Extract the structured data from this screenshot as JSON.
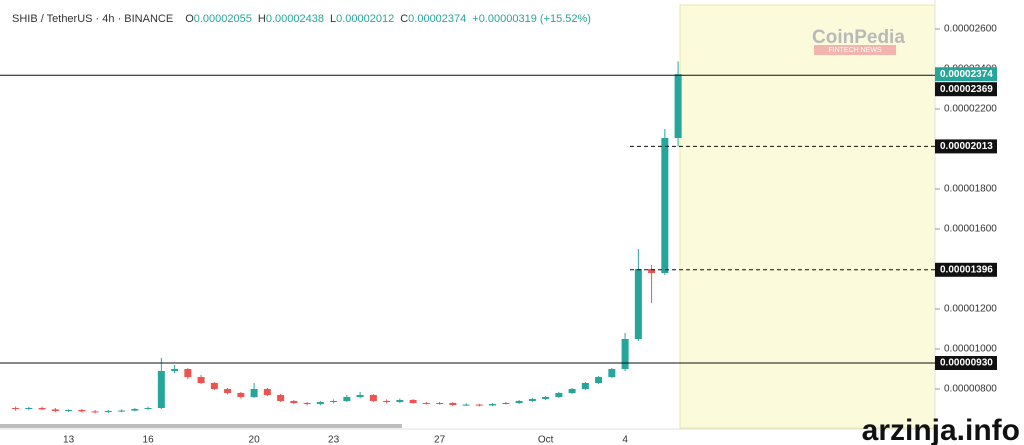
{
  "chart_data": {
    "type": "candlestick",
    "title": "SHIB / TetherUS · 4h · BINANCE",
    "ohlc_labels": [
      "O",
      "H",
      "L",
      "C"
    ],
    "change": "+0.00000319 (+15.52%)",
    "up_color": "#26a69a",
    "down_color": "#ef5350",
    "categories": [
      null,
      null,
      null,
      null,
      "13",
      null,
      null,
      null,
      null,
      null,
      "16",
      null,
      null,
      null,
      null,
      null,
      null,
      null,
      "20",
      null,
      null,
      null,
      null,
      null,
      "23",
      null,
      null,
      null,
      null,
      null,
      null,
      null,
      "27",
      null,
      null,
      null,
      null,
      null,
      null,
      null,
      "Oct",
      null,
      null,
      null,
      null,
      null,
      "4",
      null,
      null,
      null,
      null
    ],
    "open": [
      7.05e-06,
      7e-06,
      7.05e-06,
      6.98e-06,
      6.9e-06,
      6.95e-06,
      6.88e-06,
      6.85e-06,
      6.9e-06,
      6.92e-06,
      7e-06,
      7.05e-06,
      8.9e-06,
      9e-06,
      8.6e-06,
      8.3e-06,
      8e-06,
      7.8e-06,
      7.6e-06,
      8e-06,
      7.7e-06,
      7.4e-06,
      7.3e-06,
      7.25e-06,
      7.35e-06,
      7.4e-06,
      7.6e-06,
      7.7e-06,
      7.4e-06,
      7.35e-06,
      7.45e-06,
      7.3e-06,
      7.28e-06,
      7.3e-06,
      7.2e-06,
      7.22e-06,
      7.18e-06,
      7.25e-06,
      7.3e-06,
      7.4e-06,
      7.5e-06,
      7.6e-06,
      7.8e-06,
      8e-06,
      8.3e-06,
      8.6e-06,
      9e-06,
      1.05e-05,
      1.4e-05,
      1.38e-05,
      2.055e-05
    ],
    "high": [
      7.12e-06,
      7.1e-06,
      7.12e-06,
      7.05e-06,
      6.98e-06,
      7e-06,
      6.95e-06,
      6.95e-06,
      6.98e-06,
      7.05e-06,
      7.12e-06,
      9.55e-06,
      9.2e-06,
      9.05e-06,
      8.7e-06,
      8.35e-06,
      8.05e-06,
      7.85e-06,
      8.3e-06,
      8.05e-06,
      7.75e-06,
      7.45e-06,
      7.35e-06,
      7.4e-06,
      7.48e-06,
      7.7e-06,
      7.85e-06,
      7.75e-06,
      7.48e-06,
      7.52e-06,
      7.5e-06,
      7.35e-06,
      7.35e-06,
      7.35e-06,
      7.28e-06,
      7.26e-06,
      7.3e-06,
      7.35e-06,
      7.45e-06,
      7.55e-06,
      7.65e-06,
      7.85e-06,
      8.05e-06,
      8.35e-06,
      8.65e-06,
      9.05e-06,
      1.08e-05,
      1.5e-05,
      1.42e-05,
      2.1e-05,
      2.438e-05
    ],
    "low": [
      6.92e-06,
      6.94e-06,
      6.95e-06,
      6.84e-06,
      6.85e-06,
      6.82e-06,
      6.78e-06,
      6.8e-06,
      6.84e-06,
      6.88e-06,
      6.96e-06,
      7e-06,
      8.8e-06,
      8.5e-06,
      8.25e-06,
      7.95e-06,
      7.72e-06,
      7.52e-06,
      7.55e-06,
      7.65e-06,
      7.35e-06,
      7.25e-06,
      7.18e-06,
      7.18e-06,
      7.28e-06,
      7.35e-06,
      7.52e-06,
      7.35e-06,
      7.28e-06,
      7.3e-06,
      7.25e-06,
      7.22e-06,
      7.22e-06,
      7.14e-06,
      7.15e-06,
      7.12e-06,
      7.14e-06,
      7.22e-06,
      7.25e-06,
      7.35e-06,
      7.45e-06,
      7.55e-06,
      7.75e-06,
      7.95e-06,
      8.25e-06,
      8.55e-06,
      8.9e-06,
      1.04e-05,
      1.23e-05,
      1.37e-05,
      2.012e-05
    ],
    "close": [
      7e-06,
      7.05e-06,
      6.98e-06,
      6.9e-06,
      6.95e-06,
      6.88e-06,
      6.85e-06,
      6.9e-06,
      6.92e-06,
      7e-06,
      7.05e-06,
      8.9e-06,
      9e-06,
      8.6e-06,
      8.3e-06,
      8e-06,
      7.8e-06,
      7.6e-06,
      8e-06,
      7.7e-06,
      7.4e-06,
      7.3e-06,
      7.25e-06,
      7.35e-06,
      7.4e-06,
      7.6e-06,
      7.7e-06,
      7.4e-06,
      7.35e-06,
      7.45e-06,
      7.3e-06,
      7.28e-06,
      7.3e-06,
      7.2e-06,
      7.22e-06,
      7.18e-06,
      7.25e-06,
      7.3e-06,
      7.4e-06,
      7.5e-06,
      7.6e-06,
      7.8e-06,
      8e-06,
      8.3e-06,
      8.6e-06,
      9e-06,
      1.05e-05,
      1.4e-05,
      1.38e-05,
      2.055e-05,
      2.374e-05
    ],
    "ylim": [
      6e-06,
      2.72e-05
    ],
    "yticks": [
      {
        "value": 8e-06,
        "label": "0.00000800"
      },
      {
        "value": 1e-05,
        "label": "0.00001000"
      },
      {
        "value": 1.2e-05,
        "label": "0.00001200"
      },
      {
        "value": 1.4e-05,
        "label": "0.00001400"
      },
      {
        "value": 1.6e-05,
        "label": "0.00001600"
      },
      {
        "value": 1.8e-05,
        "label": "0.00001800"
      },
      {
        "value": 2e-05,
        "label": "0.00002000"
      },
      {
        "value": 2.2e-05,
        "label": "0.00002200"
      },
      {
        "value": 2.4e-05,
        "label": "0.00002400"
      },
      {
        "value": 2.6e-05,
        "label": "0.00002600"
      }
    ],
    "levels": [
      {
        "value": 2.369e-05,
        "label": "0.00002369",
        "style": "solid"
      },
      {
        "value": 2.013e-05,
        "label": "0.00002013",
        "style": "dashed"
      },
      {
        "value": 1.396e-05,
        "label": "0.00001396",
        "style": "dashed"
      },
      {
        "value": 9.3e-06,
        "label": "0.00000930",
        "style": "solid"
      }
    ],
    "watermarks": [
      "CoinPedia",
      "FINTECH NEWS",
      "arzinja.info"
    ]
  }
}
